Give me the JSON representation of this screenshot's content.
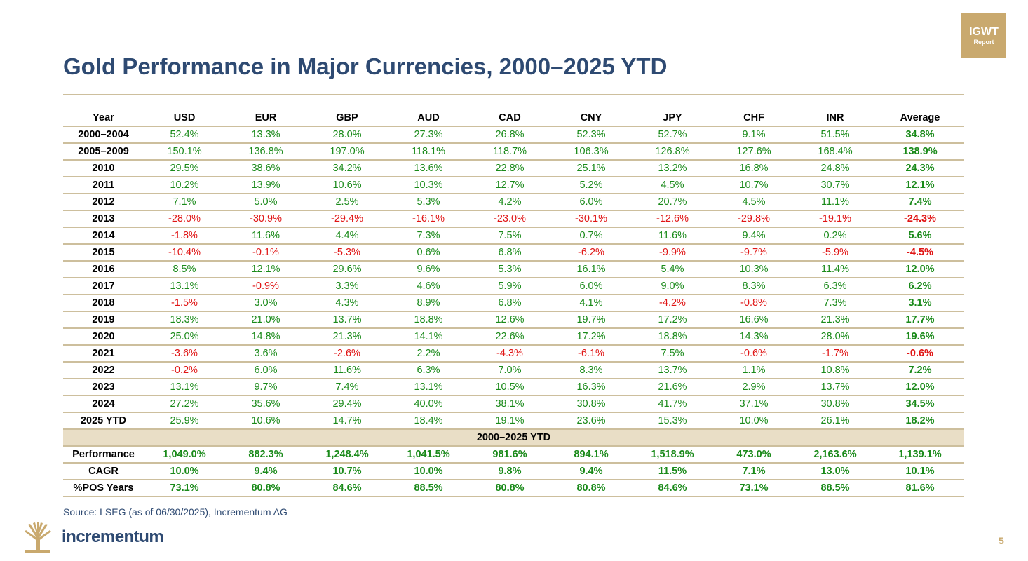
{
  "title": "Gold Performance in Major Currencies, 2000–2025 YTD",
  "badge": {
    "line1": "IGWT",
    "line2": "Report"
  },
  "table": {
    "headers": [
      "Year",
      "USD",
      "EUR",
      "GBP",
      "AUD",
      "CAD",
      "CNY",
      "JPY",
      "CHF",
      "INR",
      "Average"
    ],
    "rows": [
      [
        "2000–2004",
        "52.4%",
        "13.3%",
        "28.0%",
        "27.3%",
        "26.8%",
        "52.3%",
        "52.7%",
        "9.1%",
        "51.5%",
        "34.8%"
      ],
      [
        "2005–2009",
        "150.1%",
        "136.8%",
        "197.0%",
        "118.1%",
        "118.7%",
        "106.3%",
        "126.8%",
        "127.6%",
        "168.4%",
        "138.9%"
      ],
      [
        "2010",
        "29.5%",
        "38.6%",
        "34.2%",
        "13.6%",
        "22.8%",
        "25.1%",
        "13.2%",
        "16.8%",
        "24.8%",
        "24.3%"
      ],
      [
        "2011",
        "10.2%",
        "13.9%",
        "10.6%",
        "10.3%",
        "12.7%",
        "5.2%",
        "4.5%",
        "10.7%",
        "30.7%",
        "12.1%"
      ],
      [
        "2012",
        "7.1%",
        "5.0%",
        "2.5%",
        "5.3%",
        "4.2%",
        "6.0%",
        "20.7%",
        "4.5%",
        "11.1%",
        "7.4%"
      ],
      [
        "2013",
        "-28.0%",
        "-30.9%",
        "-29.4%",
        "-16.1%",
        "-23.0%",
        "-30.1%",
        "-12.6%",
        "-29.8%",
        "-19.1%",
        "-24.3%"
      ],
      [
        "2014",
        "-1.8%",
        "11.6%",
        "4.4%",
        "7.3%",
        "7.5%",
        "0.7%",
        "11.6%",
        "9.4%",
        "0.2%",
        "5.6%"
      ],
      [
        "2015",
        "-10.4%",
        "-0.1%",
        "-5.3%",
        "0.6%",
        "6.8%",
        "-6.2%",
        "-9.9%",
        "-9.7%",
        "-5.9%",
        "-4.5%"
      ],
      [
        "2016",
        "8.5%",
        "12.1%",
        "29.6%",
        "9.6%",
        "5.3%",
        "16.1%",
        "5.4%",
        "10.3%",
        "11.4%",
        "12.0%"
      ],
      [
        "2017",
        "13.1%",
        "-0.9%",
        "3.3%",
        "4.6%",
        "5.9%",
        "6.0%",
        "9.0%",
        "8.3%",
        "6.3%",
        "6.2%"
      ],
      [
        "2018",
        "-1.5%",
        "3.0%",
        "4.3%",
        "8.9%",
        "6.8%",
        "4.1%",
        "-4.2%",
        "-0.8%",
        "7.3%",
        "3.1%"
      ],
      [
        "2019",
        "18.3%",
        "21.0%",
        "13.7%",
        "18.8%",
        "12.6%",
        "19.7%",
        "17.2%",
        "16.6%",
        "21.3%",
        "17.7%"
      ],
      [
        "2020",
        "25.0%",
        "14.8%",
        "21.3%",
        "14.1%",
        "22.6%",
        "17.2%",
        "18.8%",
        "14.3%",
        "28.0%",
        "19.6%"
      ],
      [
        "2021",
        "-3.6%",
        "3.6%",
        "-2.6%",
        "2.2%",
        "-4.3%",
        "-6.1%",
        "7.5%",
        "-0.6%",
        "-1.7%",
        "-0.6%"
      ],
      [
        "2022",
        "-0.2%",
        "6.0%",
        "11.6%",
        "6.3%",
        "7.0%",
        "8.3%",
        "13.7%",
        "1.1%",
        "10.8%",
        "7.2%"
      ],
      [
        "2023",
        "13.1%",
        "9.7%",
        "7.4%",
        "13.1%",
        "10.5%",
        "16.3%",
        "21.6%",
        "2.9%",
        "13.7%",
        "12.0%"
      ],
      [
        "2024",
        "27.2%",
        "35.6%",
        "29.4%",
        "40.0%",
        "38.1%",
        "30.8%",
        "41.7%",
        "37.1%",
        "30.8%",
        "34.5%"
      ],
      [
        "2025 YTD",
        "25.9%",
        "10.6%",
        "14.7%",
        "18.4%",
        "19.1%",
        "23.6%",
        "15.3%",
        "10.0%",
        "26.1%",
        "18.2%"
      ]
    ],
    "section_label": "2000–2025 YTD",
    "summary_rows": [
      [
        "Performance",
        "1,049.0%",
        "882.3%",
        "1,248.4%",
        "1,041.5%",
        "981.6%",
        "894.1%",
        "1,518.9%",
        "473.0%",
        "2,163.6%",
        "1,139.1%"
      ],
      [
        "CAGR",
        "10.0%",
        "9.4%",
        "10.7%",
        "10.0%",
        "9.8%",
        "9.4%",
        "11.5%",
        "7.1%",
        "13.0%",
        "10.1%"
      ],
      [
        "%POS Years",
        "73.1%",
        "80.8%",
        "84.6%",
        "88.5%",
        "80.8%",
        "80.8%",
        "84.6%",
        "73.1%",
        "88.5%",
        "81.6%"
      ]
    ],
    "colors": {
      "positive": "#1a8a1a",
      "negative": "#e01515",
      "rule": "#cdbf9d",
      "section_bg": "#e9dec6"
    }
  },
  "source": "Source: LSEG (as of 06/30/2025), Incrementum AG",
  "logo": {
    "text": "incrementum",
    "icon": "tree-logo-icon"
  },
  "page_number": "5"
}
